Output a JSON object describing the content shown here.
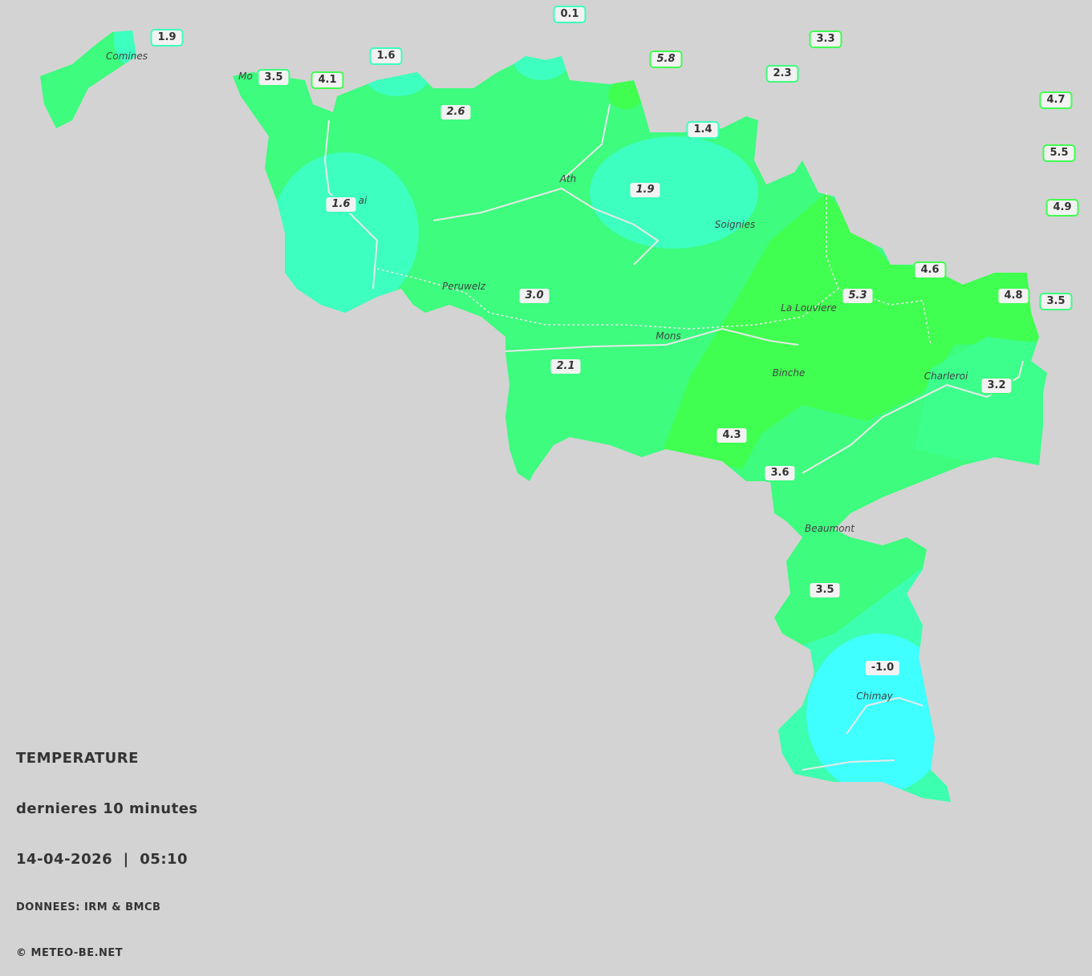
{
  "legend": {
    "title": "TEMPERATURE",
    "subtitle": "dernieres 10 minutes",
    "datetime": "14-04-2026  |  05:10",
    "source": "DONNEES: IRM & BMCB",
    "copyright": "© METEO-BE.NET"
  },
  "cities": [
    "Comines",
    "Mo",
    "ai",
    "Ath",
    "Soignies",
    "Peruwelz",
    "La Louviere",
    "Mons",
    "Binche",
    "Charleroi",
    "Beaumont",
    "Chimay"
  ],
  "stations": [
    "0.1",
    "1.9",
    "1.6",
    "3.3",
    "5.8",
    "2.3",
    "3.5",
    "4.1",
    "2.6",
    "1.4",
    "4.7",
    "5.5",
    "4.9",
    "1.9",
    "1.6",
    "4.6",
    "3.0",
    "5.3",
    "4.8",
    "3.5",
    "2.1",
    "3.2",
    "4.3",
    "3.6",
    "3.5",
    "-1.0"
  ]
}
